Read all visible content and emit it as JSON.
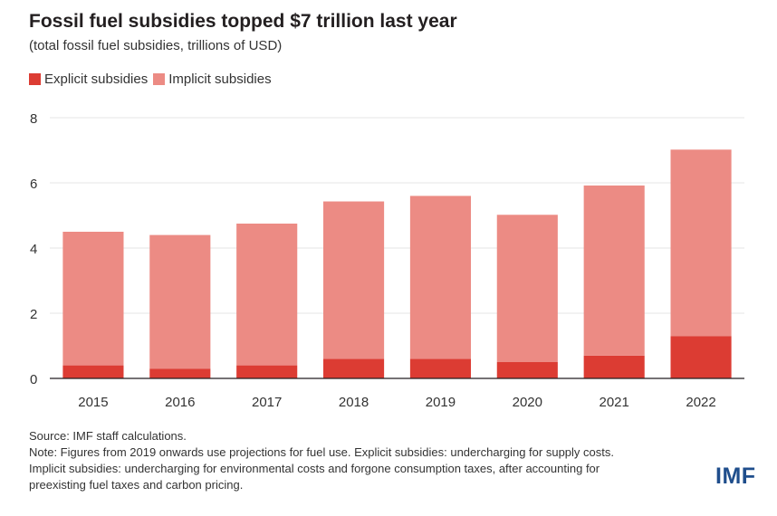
{
  "colors": {
    "explicit": "#dc3c33",
    "implicit": "#ec8b84",
    "grid": "#e5e5e5",
    "axis": "#231f20",
    "logo": "#1f4e8c"
  },
  "chart_data": {
    "type": "bar",
    "stacked": true,
    "title": "Fossil fuel subsidies topped $7 trillion last year",
    "subtitle": "(total fossil fuel subsidies, trillions of USD)",
    "categories": [
      "2015",
      "2016",
      "2017",
      "2018",
      "2019",
      "2020",
      "2021",
      "2022"
    ],
    "series": [
      {
        "name": "Explicit subsidies",
        "values": [
          0.4,
          0.3,
          0.4,
          0.6,
          0.6,
          0.5,
          0.7,
          1.3
        ]
      },
      {
        "name": "Implicit subsidies",
        "values": [
          4.1,
          4.1,
          4.35,
          4.83,
          5.0,
          4.52,
          5.22,
          5.72
        ]
      }
    ],
    "ylim": [
      0,
      8
    ],
    "yticks": [
      "0",
      "2",
      "4",
      "6",
      "8"
    ],
    "grid": true,
    "legend_position": "top-left"
  },
  "notes": {
    "source": "Source: IMF staff calculations.",
    "note_line1": "Note: Figures from 2019 onwards use projections for fuel use. Explicit subsidies: undercharging for supply costs.",
    "note_line2": "Implicit subsidies: undercharging for environmental costs and forgone consumption taxes, after accounting for",
    "note_line3": "preexisting fuel taxes and carbon pricing."
  },
  "logo_text": "IMF"
}
